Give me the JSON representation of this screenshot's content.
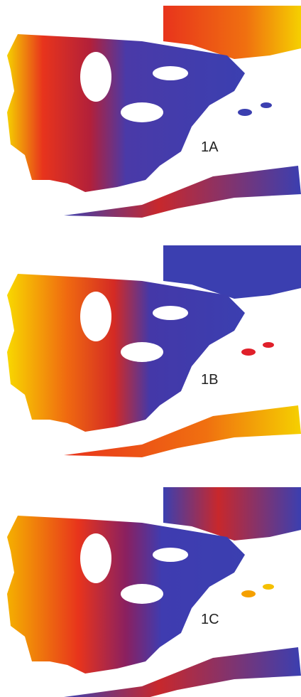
{
  "panels": [
    {
      "label": "1A"
    },
    {
      "label": "1B"
    },
    {
      "label": "1C"
    }
  ]
}
